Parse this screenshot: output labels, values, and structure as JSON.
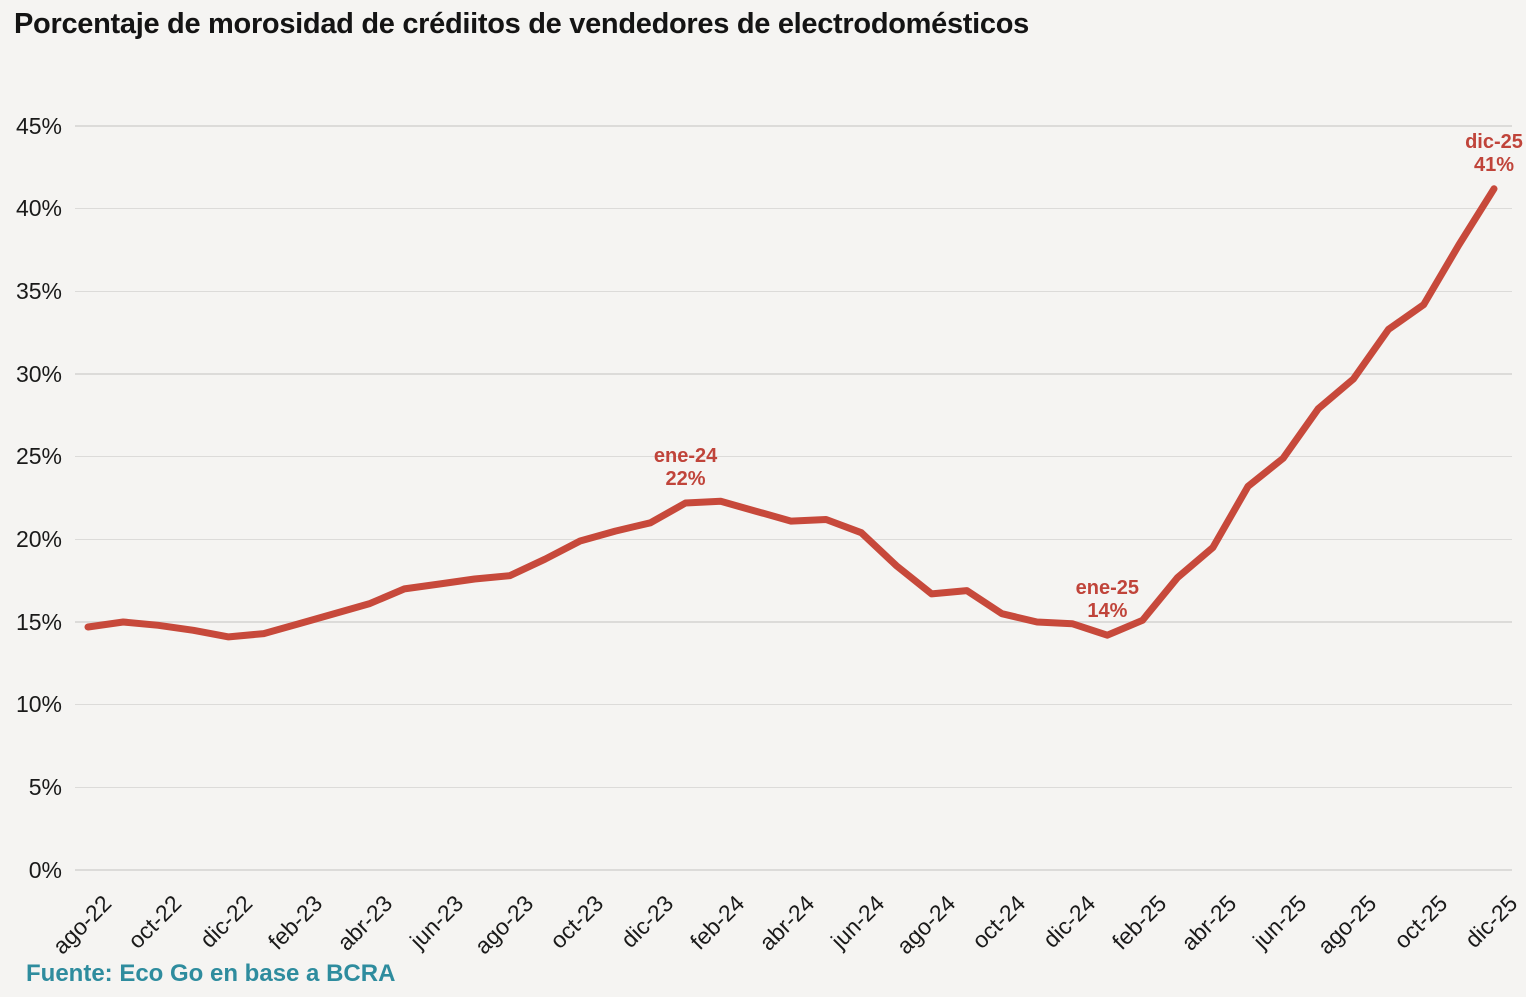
{
  "title": "Porcentaje de morosidad de crédiitos de vendedores de electrodomésticos",
  "source": "Fuente: Eco Go en base a BCRA",
  "colors": {
    "background": "#F5F4F2",
    "line": "#C7493B",
    "annotation_text": "#C0443A",
    "grid": "#DCDBD9",
    "axis_text": "#1A1A1A",
    "title_text": "#141414",
    "source_text": "#2E8C9E"
  },
  "chart_data": {
    "type": "line",
    "x": [
      "ago-22",
      "sep-22",
      "oct-22",
      "nov-22",
      "dic-22",
      "ene-23",
      "feb-23",
      "mar-23",
      "abr-23",
      "may-23",
      "jun-23",
      "jul-23",
      "ago-23",
      "sep-23",
      "oct-23",
      "nov-23",
      "dic-23",
      "ene-24",
      "feb-24",
      "mar-24",
      "abr-24",
      "may-24",
      "jun-24",
      "jul-24",
      "ago-24",
      "sep-24",
      "oct-24",
      "nov-24",
      "dic-24",
      "ene-25",
      "feb-25",
      "mar-25",
      "abr-25",
      "may-25",
      "jun-25",
      "jul-25",
      "ago-25",
      "sep-25",
      "oct-25",
      "nov-25",
      "dic-25"
    ],
    "values": [
      14.7,
      15.0,
      14.8,
      14.5,
      14.1,
      14.3,
      14.9,
      15.5,
      16.1,
      17.0,
      17.3,
      17.6,
      17.8,
      18.8,
      19.9,
      20.5,
      21.0,
      22.2,
      22.3,
      21.7,
      21.1,
      21.2,
      20.4,
      18.4,
      16.7,
      16.9,
      15.5,
      15.0,
      14.9,
      14.2,
      15.1,
      17.7,
      19.5,
      23.2,
      24.9,
      27.9,
      29.7,
      32.7,
      34.2,
      37.8,
      41.2
    ],
    "x_tick_labels": [
      "ago-22",
      "oct-22",
      "dic-22",
      "feb-23",
      "abr-23",
      "jun-23",
      "ago-23",
      "oct-23",
      "dic-23",
      "feb-24",
      "abr-24",
      "jun-24",
      "ago-24",
      "oct-24",
      "dic-24",
      "feb-25",
      "abr-25",
      "jun-25",
      "ago-25",
      "oct-25",
      "dic-25"
    ],
    "x_tick_every": 2,
    "y_ticks": [
      0,
      5,
      10,
      15,
      20,
      25,
      30,
      35,
      40,
      45
    ],
    "y_tick_labels": [
      "0%",
      "5%",
      "10%",
      "15%",
      "20%",
      "25%",
      "30%",
      "35%",
      "40%",
      "45%"
    ],
    "ylim": [
      0,
      45
    ],
    "grid": "horizontal",
    "legend": "none",
    "annotations": [
      {
        "line1": "ene-24",
        "line2": "22%",
        "anchor_month": "ene-24",
        "value": 22
      },
      {
        "line1": "ene-25",
        "line2": "14%",
        "anchor_month": "ene-25",
        "value": 14
      },
      {
        "line1": "dic-25",
        "line2": "41%",
        "anchor_month": "dic-25",
        "value": 41
      }
    ]
  }
}
